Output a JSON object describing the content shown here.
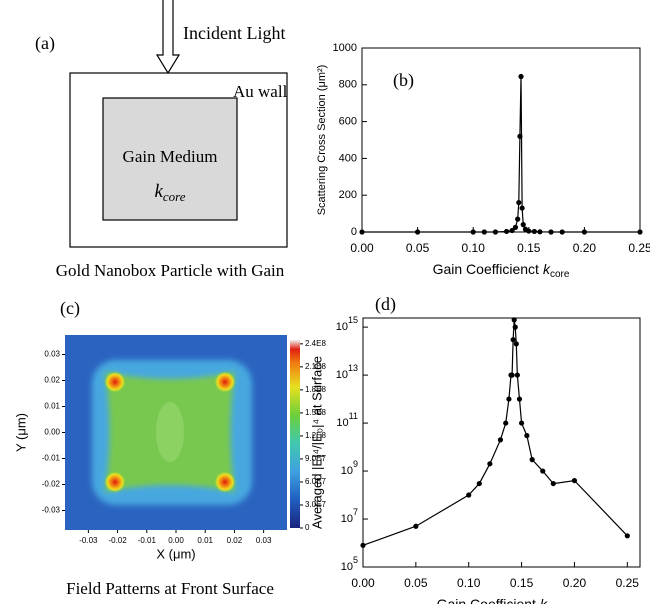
{
  "figure": {
    "panel_a": {
      "label": "(a)",
      "arrow_label": "Incident Light",
      "wall_label": "Au wall",
      "medium_label": "Gain Medium",
      "k_symbol": "k",
      "k_subscript": "core",
      "caption": "Gold Nanobox Particle with Gain"
    }
  },
  "chart_data": [
    {
      "type": "line",
      "panel_label": "(b)",
      "y_label": "Scattering Cross Section (μm²)",
      "x_label": "Gain Coefficienct",
      "x_label_symbol": "k",
      "x_label_subscript": "core",
      "x": [
        0,
        0.05,
        0.1,
        0.11,
        0.12,
        0.13,
        0.135,
        0.138,
        0.14,
        0.141,
        0.142,
        0.143,
        0.144,
        0.145,
        0.147,
        0.15,
        0.155,
        0.16,
        0.17,
        0.18,
        0.2,
        0.25
      ],
      "values": [
        0,
        0,
        0,
        0,
        0,
        3,
        8,
        25,
        70,
        160,
        520,
        845,
        130,
        40,
        15,
        5,
        3,
        1,
        0,
        0,
        0,
        0
      ],
      "color": "#000000",
      "log_y": false,
      "xlim": [
        0,
        0.25
      ],
      "xticks": [
        {
          "value": 0,
          "label": "0.00"
        },
        0.05,
        {
          "value": 0.1,
          "label": "0.10"
        },
        0.15,
        {
          "value": 0.2,
          "label": "0.20"
        },
        0.25
      ],
      "ylim": [
        0,
        1000
      ],
      "yticks": [
        0,
        200,
        400,
        600,
        800,
        1000
      ]
    },
    {
      "type": "heatmap",
      "panel_label": "(c)",
      "x_label": "X (μm)",
      "y_label": "Y (μm)",
      "caption": "Field Patterns at Front Surface",
      "xlim": [
        -0.038,
        0.038
      ],
      "xticks": [
        -0.03,
        -0.02,
        -0.01,
        {
          "value": 0,
          "label": "0.00"
        },
        0.01,
        0.02,
        0.03
      ],
      "ylim": [
        -0.0375,
        0.0375
      ],
      "yticks": [
        -0.03,
        -0.02,
        -0.01,
        {
          "value": 0,
          "label": "0.00"
        },
        0.01,
        0.02,
        0.03
      ],
      "colorbar": {
        "lim": [
          0,
          245000000
        ],
        "ticks": [
          0,
          {
            "value": 30000000,
            "label": "3.0E7"
          },
          {
            "value": 60000000,
            "label": "6.0E7"
          },
          {
            "value": 90000000,
            "label": "9.0E7"
          },
          {
            "value": 120000000,
            "label": "1.2E8"
          },
          {
            "value": 150000000,
            "label": "1.5E8"
          },
          {
            "value": 180000000,
            "label": "1.8E8"
          },
          {
            "value": 210000000,
            "label": "2.1E8"
          },
          {
            "value": 240000000,
            "label": "2.4E8"
          }
        ]
      }
    },
    {
      "type": "line",
      "panel_label": "(d)",
      "y_label": "Averaged |E|⁴/|E₀|⁴ at Surface",
      "x_label": "Gain Coefficient",
      "x_label_symbol": "k",
      "x_label_subscript": "core",
      "x": [
        0,
        0.05,
        0.1,
        0.11,
        0.12,
        0.13,
        0.135,
        0.138,
        0.14,
        0.141,
        0.142,
        0.143,
        0.144,
        0.145,
        0.146,
        0.148,
        0.15,
        0.155,
        0.16,
        0.17,
        0.18,
        0.2,
        0.25
      ],
      "values": [
        800000,
        5000000,
        100000000,
        300000000,
        2000000000,
        20000000000,
        100000000000,
        1000000000000,
        10000000000000,
        10000000000000,
        300000000000000,
        2000000000000000,
        1000000000000000,
        200000000000000,
        10000000000000,
        1000000000000,
        100000000000,
        30000000000,
        3000000000,
        1000000000,
        300000000,
        400000000,
        2000000
      ],
      "color": "#000000",
      "log_y": true,
      "xlim": [
        0,
        0.262
      ],
      "xticks": [
        {
          "value": 0,
          "label": "0.00"
        },
        0.05,
        {
          "value": 0.1,
          "label": "0.10"
        },
        0.15,
        {
          "value": 0.2,
          "label": "0.20"
        },
        0.25
      ],
      "ylim": [
        100000,
        2400000000000000
      ],
      "yticks": [
        {
          "value": 100000,
          "label": "10^5"
        },
        {
          "value": 10000000,
          "label": "10^7"
        },
        {
          "value": 1000000000,
          "label": "10^9"
        },
        {
          "value": 100000000000,
          "label": "10^11"
        },
        {
          "value": 10000000000000,
          "label": "10^13"
        },
        {
          "value": 1000000000000000,
          "label": "10^15"
        }
      ]
    }
  ]
}
